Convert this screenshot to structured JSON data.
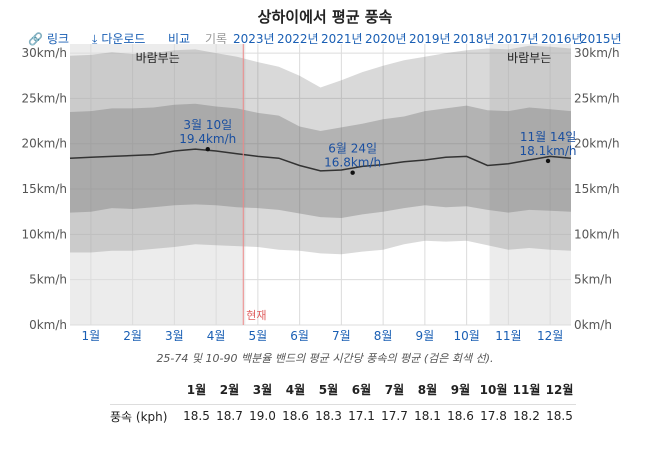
{
  "title": "상하이에서 평균 풍속",
  "toolbar": {
    "link": "링크",
    "download": "다운로드",
    "compare": "비교",
    "history": "기록",
    "years": [
      "2023년",
      "2022년",
      "2021년",
      "2020년",
      "2019년",
      "2018년",
      "2017년",
      "2016년",
      "2015년"
    ]
  },
  "chart_data": {
    "type": "area",
    "ylabel_unit": "km/h",
    "ylim": [
      0,
      31
    ],
    "yticks": [
      "0km/h",
      "5km/h",
      "10km/h",
      "15km/h",
      "20km/h",
      "25km/h",
      "30km/h"
    ],
    "months": [
      "1월",
      "2월",
      "3월",
      "4월",
      "5월",
      "6월",
      "7월",
      "8월",
      "9월",
      "10월",
      "11월",
      "12월"
    ],
    "windy_label": "바람부는",
    "windy_periods": [
      [
        "1월 1일",
        "5월 7일"
      ],
      [
        "11월 3일",
        "12월 31일"
      ]
    ],
    "now_label": "현재",
    "now_month": 4.15,
    "x": [
      0,
      0.5,
      1,
      1.5,
      2,
      2.5,
      3,
      3.5,
      4,
      4.5,
      5,
      5.5,
      6,
      6.5,
      7,
      7.5,
      8,
      8.5,
      9,
      9.5,
      10,
      10.5,
      11,
      11.5,
      12
    ],
    "p10": [
      8,
      8,
      8.2,
      8.2,
      8.4,
      8.6,
      8.9,
      8.8,
      8.7,
      8.6,
      8.3,
      8.2,
      7.9,
      7.8,
      8.1,
      8.3,
      8.9,
      9.3,
      9.2,
      9.3,
      8.8,
      8.3,
      8.5,
      8.3,
      8.2
    ],
    "p25": [
      12.4,
      12.5,
      12.9,
      12.8,
      13,
      13.2,
      13.3,
      13.2,
      13,
      12.9,
      12.7,
      12.3,
      11.9,
      11.8,
      12.2,
      12.5,
      12.9,
      13.2,
      13,
      13.1,
      12.7,
      12.4,
      12.7,
      12.6,
      12.5
    ],
    "avg": [
      18.4,
      18.5,
      18.6,
      18.7,
      18.8,
      19.2,
      19.4,
      19.2,
      18.9,
      18.6,
      18.4,
      17.6,
      17,
      17.1,
      17.5,
      17.7,
      18,
      18.2,
      18.5,
      18.6,
      17.6,
      17.8,
      18.2,
      18.6,
      18.4
    ],
    "p75": [
      23.5,
      23.6,
      23.9,
      23.9,
      24,
      24.3,
      24.4,
      24.1,
      23.9,
      23.4,
      23.1,
      21.9,
      21.4,
      21.8,
      22.2,
      22.7,
      23,
      23.6,
      23.9,
      24.2,
      23.7,
      23.6,
      24,
      23.8,
      23.6
    ],
    "p90": [
      29.7,
      29.8,
      30.1,
      29.9,
      30,
      30.3,
      30.4,
      30,
      29.6,
      29,
      28.5,
      27.5,
      26.2,
      27,
      27.9,
      28.6,
      29.2,
      29.6,
      30,
      30.3,
      30.5,
      30.4,
      30.8,
      30.7,
      30.5
    ],
    "annotations": [
      {
        "date": "3월 10일",
        "value": "19.4km/h",
        "x": 3.3,
        "y": 19.4
      },
      {
        "date": "6월 24일",
        "value": "16.8km/h",
        "x": 6.77,
        "y": 16.8
      },
      {
        "date": "11월 14일",
        "value": "18.1km/h",
        "x": 11.45,
        "y": 18.1
      }
    ]
  },
  "caption": "25-74 및 10-90 백분율 밴드의 평균 시간당 풍속의 평균 (검은 회색 선).",
  "table": {
    "row_label": "풍속 (kph)",
    "months": [
      "1월",
      "2월",
      "3월",
      "4월",
      "5월",
      "6월",
      "7월",
      "8월",
      "9월",
      "10월",
      "11월",
      "12월"
    ],
    "values": [
      "18.5",
      "18.7",
      "19.0",
      "18.6",
      "18.3",
      "17.1",
      "17.7",
      "18.1",
      "18.6",
      "17.8",
      "18.2",
      "18.5"
    ]
  }
}
